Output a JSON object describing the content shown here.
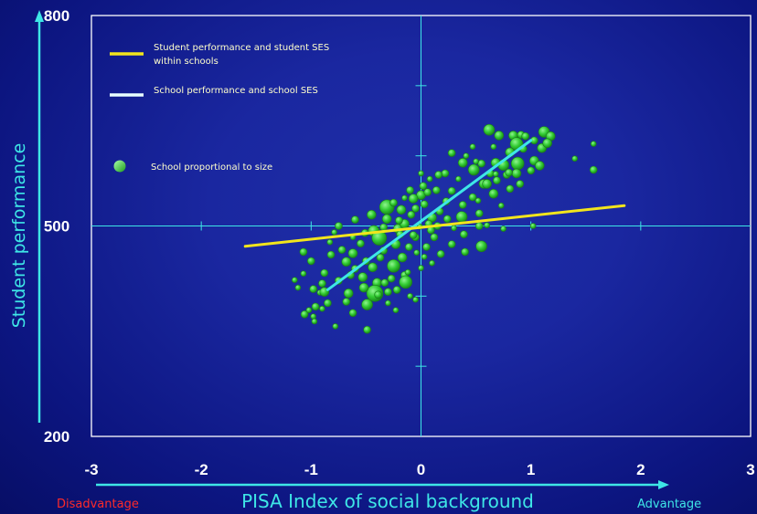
{
  "chart_data": {
    "type": "scatter",
    "xlabel": "PISA Index of social background",
    "ylabel": "Student performance",
    "xlim": [
      -3,
      3
    ],
    "ylim": [
      200,
      800
    ],
    "xticks": [
      "-3",
      "-2",
      "-1",
      "0",
      "1",
      "2",
      "3"
    ],
    "yticks": [
      "200",
      "500",
      "800"
    ],
    "x_low_label": "Disadvantage",
    "x_high_label": "Advantage",
    "grid": "crosshair at x=0 and y=500",
    "legend_position": "top-left",
    "colors": {
      "within_line": "#f2e51c",
      "between_line": "#3ee6e6",
      "points": "#33cc33",
      "disadvantage": "#ff2a2a",
      "advantage": "#3ee6e6"
    },
    "series": [
      {
        "name": "Student performance and student SES within schools",
        "type": "line",
        "x": [
          -1.6,
          1.85
        ],
        "y": [
          471,
          529
        ]
      },
      {
        "name": "School performance and school SES",
        "type": "line",
        "x": [
          -0.85,
          1.0
        ],
        "y": [
          409,
          622
        ]
      },
      {
        "name": "School proportional to size",
        "type": "scatter",
        "points": [
          {
            "x": 0.62,
            "y": 637,
            "r": 6
          },
          {
            "x": 0.47,
            "y": 613,
            "r": 3
          },
          {
            "x": 0.71,
            "y": 629,
            "r": 5
          },
          {
            "x": 0.84,
            "y": 629,
            "r": 5
          },
          {
            "x": 0.87,
            "y": 617,
            "r": 7
          },
          {
            "x": 0.91,
            "y": 630,
            "r": 4
          },
          {
            "x": 1.12,
            "y": 634,
            "r": 6
          },
          {
            "x": 1.18,
            "y": 628,
            "r": 5
          },
          {
            "x": 1.1,
            "y": 611,
            "r": 5
          },
          {
            "x": 1.15,
            "y": 618,
            "r": 5
          },
          {
            "x": 1.4,
            "y": 596,
            "r": 3
          },
          {
            "x": 1.57,
            "y": 617,
            "r": 3
          },
          {
            "x": 1.57,
            "y": 580,
            "r": 4
          },
          {
            "x": 0.75,
            "y": 587,
            "r": 6
          },
          {
            "x": 0.88,
            "y": 589,
            "r": 7
          },
          {
            "x": 0.93,
            "y": 610,
            "r": 4
          },
          {
            "x": 0.81,
            "y": 605,
            "r": 5
          },
          {
            "x": 0.68,
            "y": 590,
            "r": 5
          },
          {
            "x": 0.55,
            "y": 589,
            "r": 4
          },
          {
            "x": 0.38,
            "y": 590,
            "r": 5
          },
          {
            "x": 0.48,
            "y": 580,
            "r": 6
          },
          {
            "x": 0.63,
            "y": 575,
            "r": 4
          },
          {
            "x": 0.22,
            "y": 575,
            "r": 4
          },
          {
            "x": 0.34,
            "y": 567,
            "r": 3
          },
          {
            "x": 0.08,
            "y": 567,
            "r": 3
          },
          {
            "x": 0.02,
            "y": 557,
            "r": 4
          },
          {
            "x": 0.14,
            "y": 551,
            "r": 4
          },
          {
            "x": 0.0,
            "y": 544,
            "r": 5
          },
          {
            "x": 0.23,
            "y": 535,
            "r": 4
          },
          {
            "x": 0.38,
            "y": 530,
            "r": 4
          },
          {
            "x": 0.52,
            "y": 536,
            "r": 3
          },
          {
            "x": 0.66,
            "y": 546,
            "r": 5
          },
          {
            "x": 0.9,
            "y": 560,
            "r": 4
          },
          {
            "x": 0.81,
            "y": 553,
            "r": 4
          },
          {
            "x": 0.73,
            "y": 529,
            "r": 3
          },
          {
            "x": 1.02,
            "y": 500,
            "r": 3
          },
          {
            "x": 0.37,
            "y": 513,
            "r": 6
          },
          {
            "x": 0.24,
            "y": 510,
            "r": 4
          },
          {
            "x": 0.1,
            "y": 512,
            "r": 5
          },
          {
            "x": 0.07,
            "y": 503,
            "r": 4
          },
          {
            "x": 0.53,
            "y": 518,
            "r": 4
          },
          {
            "x": -0.05,
            "y": 525,
            "r": 4
          },
          {
            "x": -0.09,
            "y": 516,
            "r": 4
          },
          {
            "x": -0.18,
            "y": 523,
            "r": 5
          },
          {
            "x": -0.31,
            "y": 527,
            "r": 8
          },
          {
            "x": -0.31,
            "y": 510,
            "r": 5
          },
          {
            "x": -0.21,
            "y": 496,
            "r": 5
          },
          {
            "x": -0.45,
            "y": 516,
            "r": 5
          },
          {
            "x": -0.6,
            "y": 509,
            "r": 4
          },
          {
            "x": -0.15,
            "y": 503,
            "r": 5
          },
          {
            "x": -0.34,
            "y": 498,
            "r": 4
          },
          {
            "x": -0.43,
            "y": 493,
            "r": 6
          },
          {
            "x": -0.38,
            "y": 483,
            "r": 8
          },
          {
            "x": -0.19,
            "y": 488,
            "r": 4
          },
          {
            "x": -0.05,
            "y": 484,
            "r": 4
          },
          {
            "x": -0.01,
            "y": 499,
            "r": 3
          },
          {
            "x": -0.23,
            "y": 474,
            "r": 5
          },
          {
            "x": -0.34,
            "y": 465,
            "r": 4
          },
          {
            "x": -0.62,
            "y": 484,
            "r": 3
          },
          {
            "x": -0.75,
            "y": 500,
            "r": 4
          },
          {
            "x": -0.17,
            "y": 455,
            "r": 5
          },
          {
            "x": -0.37,
            "y": 455,
            "r": 4
          },
          {
            "x": -0.25,
            "y": 443,
            "r": 7
          },
          {
            "x": -0.27,
            "y": 425,
            "r": 4
          },
          {
            "x": -0.15,
            "y": 430,
            "r": 4
          },
          {
            "x": -0.44,
            "y": 441,
            "r": 5
          },
          {
            "x": -0.3,
            "y": 406,
            "r": 4
          },
          {
            "x": -0.4,
            "y": 419,
            "r": 5
          },
          {
            "x": -0.5,
            "y": 450,
            "r": 4
          },
          {
            "x": -0.62,
            "y": 461,
            "r": 5
          },
          {
            "x": -0.6,
            "y": 439,
            "r": 4
          },
          {
            "x": -0.53,
            "y": 427,
            "r": 5
          },
          {
            "x": -0.72,
            "y": 466,
            "r": 4
          },
          {
            "x": -0.68,
            "y": 449,
            "r": 5
          },
          {
            "x": -0.82,
            "y": 459,
            "r": 4
          },
          {
            "x": -0.88,
            "y": 433,
            "r": 4
          },
          {
            "x": -0.9,
            "y": 418,
            "r": 4
          },
          {
            "x": -0.92,
            "y": 405,
            "r": 3
          },
          {
            "x": -0.98,
            "y": 410,
            "r": 4
          },
          {
            "x": -0.75,
            "y": 422,
            "r": 4
          },
          {
            "x": -0.66,
            "y": 404,
            "r": 5
          },
          {
            "x": -0.88,
            "y": 406,
            "r": 5
          },
          {
            "x": -0.96,
            "y": 385,
            "r": 4
          },
          {
            "x": -1.12,
            "y": 412,
            "r": 3
          },
          {
            "x": -1.15,
            "y": 423,
            "r": 3
          },
          {
            "x": -1.07,
            "y": 432,
            "r": 3
          },
          {
            "x": -1.07,
            "y": 463,
            "r": 4
          },
          {
            "x": -1.0,
            "y": 450,
            "r": 4
          },
          {
            "x": -0.83,
            "y": 477,
            "r": 3
          },
          {
            "x": -0.79,
            "y": 491,
            "r": 3
          },
          {
            "x": -0.55,
            "y": 475,
            "r": 4
          },
          {
            "x": -0.51,
            "y": 490,
            "r": 4
          },
          {
            "x": -0.64,
            "y": 430,
            "r": 4
          },
          {
            "x": -0.49,
            "y": 388,
            "r": 6
          },
          {
            "x": -0.42,
            "y": 404,
            "r": 9
          },
          {
            "x": -0.14,
            "y": 420,
            "r": 7
          },
          {
            "x": -0.22,
            "y": 409,
            "r": 4
          },
          {
            "x": -0.52,
            "y": 412,
            "r": 5
          },
          {
            "x": -0.62,
            "y": 376,
            "r": 4
          },
          {
            "x": -0.68,
            "y": 392,
            "r": 4
          },
          {
            "x": -0.85,
            "y": 390,
            "r": 4
          },
          {
            "x": -1.06,
            "y": 374,
            "r": 4
          },
          {
            "x": -0.98,
            "y": 371,
            "r": 3
          },
          {
            "x": -0.97,
            "y": 364,
            "r": 3
          },
          {
            "x": -1.02,
            "y": 380,
            "r": 3
          },
          {
            "x": -0.39,
            "y": 402,
            "r": 4
          },
          {
            "x": -0.3,
            "y": 390,
            "r": 3
          },
          {
            "x": -0.05,
            "y": 395,
            "r": 3
          },
          {
            "x": -0.1,
            "y": 400,
            "r": 3
          },
          {
            "x": -0.23,
            "y": 380,
            "r": 3
          },
          {
            "x": -0.49,
            "y": 352,
            "r": 4
          },
          {
            "x": -0.9,
            "y": 382,
            "r": 3
          },
          {
            "x": -0.78,
            "y": 357,
            "r": 3
          },
          {
            "x": 0.0,
            "y": 440,
            "r": 3
          },
          {
            "x": 0.05,
            "y": 470,
            "r": 4
          },
          {
            "x": 0.12,
            "y": 484,
            "r": 4
          },
          {
            "x": 0.03,
            "y": 456,
            "r": 3
          },
          {
            "x": 0.18,
            "y": 460,
            "r": 4
          },
          {
            "x": 0.28,
            "y": 474,
            "r": 4
          },
          {
            "x": 0.39,
            "y": 488,
            "r": 4
          },
          {
            "x": 0.55,
            "y": 471,
            "r": 6
          },
          {
            "x": 0.4,
            "y": 463,
            "r": 4
          },
          {
            "x": 0.3,
            "y": 497,
            "r": 3
          },
          {
            "x": 0.53,
            "y": 500,
            "r": 4
          },
          {
            "x": 0.6,
            "y": 501,
            "r": 3
          },
          {
            "x": 0.75,
            "y": 496,
            "r": 3
          },
          {
            "x": 0.47,
            "y": 541,
            "r": 4
          },
          {
            "x": 0.57,
            "y": 560,
            "r": 5
          },
          {
            "x": 0.28,
            "y": 550,
            "r": 4
          },
          {
            "x": 0.16,
            "y": 573,
            "r": 4
          },
          {
            "x": 0.41,
            "y": 600,
            "r": 3
          },
          {
            "x": 0.28,
            "y": 604,
            "r": 4
          },
          {
            "x": 1.03,
            "y": 593,
            "r": 5
          },
          {
            "x": 1.0,
            "y": 579,
            "r": 4
          },
          {
            "x": 0.78,
            "y": 573,
            "r": 4
          },
          {
            "x": 0.68,
            "y": 574,
            "r": 3
          },
          {
            "x": 0.87,
            "y": 575,
            "r": 5
          },
          {
            "x": 0.6,
            "y": 560,
            "r": 5
          },
          {
            "x": 1.08,
            "y": 586,
            "r": 5
          },
          {
            "x": 0.17,
            "y": 521,
            "r": 4
          },
          {
            "x": 0.03,
            "y": 531,
            "r": 4
          },
          {
            "x": -0.07,
            "y": 539,
            "r": 5
          },
          {
            "x": -0.1,
            "y": 551,
            "r": 4
          },
          {
            "x": 0.06,
            "y": 548,
            "r": 4
          },
          {
            "x": -0.2,
            "y": 508,
            "r": 4
          },
          {
            "x": -0.07,
            "y": 487,
            "r": 4
          },
          {
            "x": -0.11,
            "y": 470,
            "r": 4
          },
          {
            "x": -0.04,
            "y": 462,
            "r": 3
          },
          {
            "x": 0.09,
            "y": 494,
            "r": 4
          },
          {
            "x": 0.15,
            "y": 500,
            "r": 4
          },
          {
            "x": -0.25,
            "y": 533,
            "r": 4
          },
          {
            "x": -0.15,
            "y": 540,
            "r": 3
          },
          {
            "x": 0.0,
            "y": 575,
            "r": 3
          },
          {
            "x": 0.8,
            "y": 576,
            "r": 4
          },
          {
            "x": 0.69,
            "y": 565,
            "r": 4
          },
          {
            "x": 1.03,
            "y": 622,
            "r": 4
          },
          {
            "x": 0.95,
            "y": 628,
            "r": 4
          },
          {
            "x": 0.66,
            "y": 613,
            "r": 3
          },
          {
            "x": 0.5,
            "y": 592,
            "r": 3
          },
          {
            "x": -0.33,
            "y": 419,
            "r": 4
          },
          {
            "x": -0.12,
            "y": 434,
            "r": 3
          },
          {
            "x": 0.1,
            "y": 447,
            "r": 3
          }
        ]
      }
    ],
    "legend": [
      {
        "label_lines": [
          "Student performance and student SES",
          "within schools"
        ],
        "marker": "line"
      },
      {
        "label_lines": [
          "School performance and school SES"
        ],
        "marker": "line"
      },
      {
        "label_lines": [
          "School proportional to size"
        ],
        "marker": "dot"
      }
    ]
  }
}
